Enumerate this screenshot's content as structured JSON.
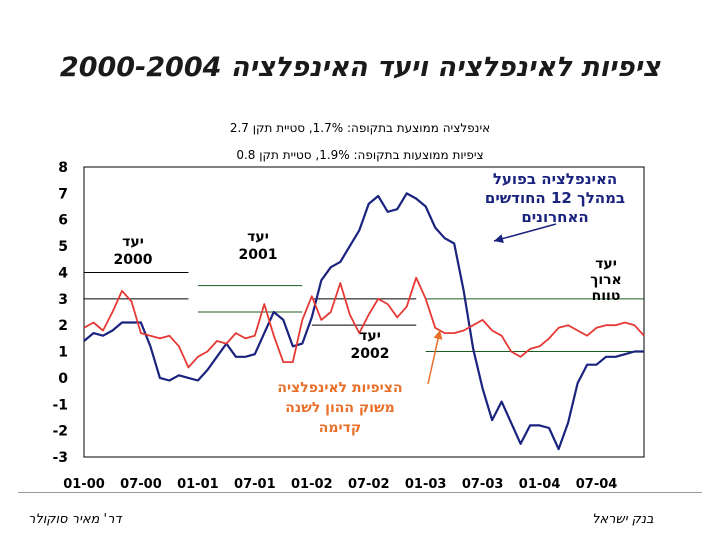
{
  "title": "ציפיות לאינפלציה ויעד האינפלציה 2000-2004",
  "stats": {
    "actual": "אינפלציה ממוצעת בתקופה: 1.7%, סטיית תקן 2.7",
    "expected": "ציפיות ממוצעות בתקופה: 1.9%, סטיית תקן 0.8"
  },
  "footer": {
    "left": "דר' מאיר סוקולר",
    "right": "בנק ישראל"
  },
  "annotations": {
    "target_2000": [
      "יעד",
      "2000"
    ],
    "target_2001": [
      "יעד",
      "2001"
    ],
    "target_2002": [
      "יעד",
      "2002"
    ],
    "target_long": [
      "יעד",
      "ארוך",
      "טווח"
    ],
    "actual_label": [
      "האינפלציה בפועל",
      "במהלך 12 החודשים",
      "האחרונים"
    ],
    "expected_label": [
      "הציפיות לאינפלציה",
      "משוק ההון לשנה",
      "קדימה"
    ]
  },
  "colors": {
    "actual": "#1a237e",
    "expected": "#e53935",
    "target_2000": "#000000",
    "target_2001": "#1b5e20",
    "target_2002": "#000000",
    "target_long": "#1b5e20",
    "red_arrow": "#e8702a",
    "blue_arrow": "#1a237e"
  },
  "chart_data": {
    "type": "line",
    "x": [
      "2000-01",
      "2000-02",
      "2000-03",
      "2000-04",
      "2000-05",
      "2000-06",
      "2000-07",
      "2000-08",
      "2000-09",
      "2000-10",
      "2000-11",
      "2000-12",
      "2001-01",
      "2001-02",
      "2001-03",
      "2001-04",
      "2001-05",
      "2001-06",
      "2001-07",
      "2001-08",
      "2001-09",
      "2001-10",
      "2001-11",
      "2001-12",
      "2002-01",
      "2002-02",
      "2002-03",
      "2002-04",
      "2002-05",
      "2002-06",
      "2002-07",
      "2002-08",
      "2002-09",
      "2002-10",
      "2002-11",
      "2002-12",
      "2003-01",
      "2003-02",
      "2003-03",
      "2003-04",
      "2003-05",
      "2003-06",
      "2003-07",
      "2003-08",
      "2003-09",
      "2003-10",
      "2003-11",
      "2003-12",
      "2004-01",
      "2004-02",
      "2004-03",
      "2004-04",
      "2004-05",
      "2004-06",
      "2004-07",
      "2004-08",
      "2004-09",
      "2004-10",
      "2004-11",
      "2004-12"
    ],
    "x_tick_labels": [
      "01-00",
      "07-00",
      "01-01",
      "07-01",
      "01-02",
      "07-02",
      "01-03",
      "07-03",
      "01-04",
      "07-04"
    ],
    "ylim": [
      -3,
      8
    ],
    "y_ticks": [
      8,
      7,
      6,
      5,
      4,
      3,
      2,
      1,
      0,
      -1,
      -2,
      -3
    ],
    "series": [
      {
        "name": "האינפלציה בפועל במהלך 12 החודשים האחרונים",
        "key": "actual",
        "values": [
          1.4,
          1.7,
          1.6,
          1.8,
          2.1,
          2.1,
          2.1,
          1.2,
          0.0,
          -0.1,
          0.1,
          0.0,
          -0.1,
          0.3,
          0.8,
          1.3,
          0.8,
          0.8,
          0.9,
          1.7,
          2.5,
          2.2,
          1.2,
          1.3,
          2.3,
          3.7,
          4.2,
          4.4,
          5.0,
          5.6,
          6.6,
          6.9,
          6.3,
          6.4,
          7.0,
          6.8,
          6.5,
          5.7,
          5.3,
          5.1,
          3.3,
          1.1,
          -0.4,
          -1.6,
          -0.9,
          -1.7,
          -2.5,
          -1.8,
          -1.8,
          -1.9,
          -2.7,
          -1.7,
          -0.2,
          0.5,
          0.5,
          0.8,
          0.8,
          0.9,
          1.0,
          1.0
        ]
      },
      {
        "name": "הציפיות לאינפלציה משוק ההון לשנה קדימה",
        "key": "expected",
        "values": [
          1.9,
          2.1,
          1.8,
          2.5,
          3.3,
          2.9,
          1.7,
          1.6,
          1.5,
          1.6,
          1.2,
          0.4,
          0.8,
          1.0,
          1.4,
          1.3,
          1.7,
          1.5,
          1.6,
          2.8,
          1.6,
          0.6,
          0.6,
          2.2,
          3.1,
          2.2,
          2.5,
          3.6,
          2.4,
          1.7,
          2.4,
          3.0,
          2.8,
          2.3,
          2.7,
          3.8,
          3.0,
          1.9,
          1.7,
          1.7,
          1.8,
          2.0,
          2.2,
          1.8,
          1.6,
          1.0,
          0.8,
          1.1,
          1.2,
          1.5,
          1.9,
          2.0,
          1.8,
          1.6,
          1.9,
          2.0,
          2.0,
          2.1,
          2.0,
          1.6
        ]
      }
    ],
    "targets": [
      {
        "key": "target_2000",
        "y_top": 4.0,
        "y_bottom": 3.0,
        "x_from": "2000-01",
        "x_to": "2000-12"
      },
      {
        "key": "target_2001",
        "y_top": 3.5,
        "y_bottom": 2.5,
        "x_from": "2001-01",
        "x_to": "2001-12"
      },
      {
        "key": "target_2002",
        "y_top": 3.0,
        "y_bottom": 2.0,
        "x_from": "2002-01",
        "x_to": "2002-12"
      },
      {
        "key": "target_long",
        "y_top": 3.0,
        "y_bottom": 1.0,
        "x_from": "2003-01",
        "x_to": "2004-12"
      }
    ],
    "grid": false,
    "xlabel": "",
    "ylabel": ""
  }
}
